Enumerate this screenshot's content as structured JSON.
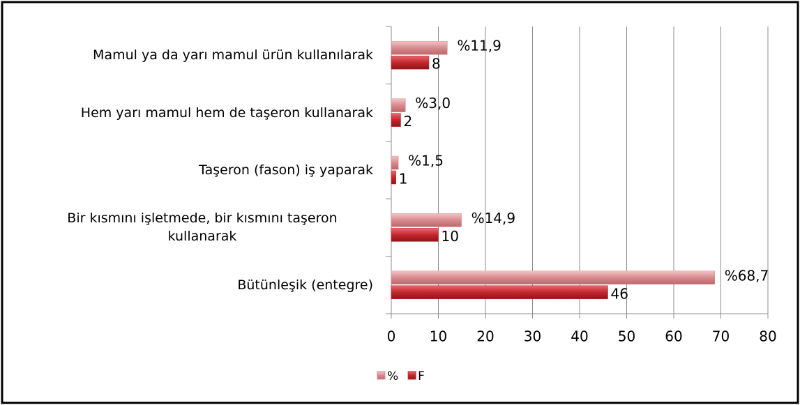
{
  "chart_data": {
    "type": "bar",
    "orientation": "horizontal",
    "categories": [
      "Mamul ya da yarı mamul ürün kullanılarak",
      "Hem yarı mamul hem de taşeron kullanarak",
      "Taşeron (fason)  iş yaparak",
      "Bir kısmını işletmede, bir kısmını taşeron kullanarak",
      "Bütünleşik  (entegre)"
    ],
    "series": [
      {
        "name": "%",
        "color": "#d98a8e",
        "values": [
          11.9,
          3.0,
          1.5,
          14.9,
          68.7
        ],
        "value_labels": [
          "%11,9",
          "%3,0",
          "%1,5",
          "%14,9",
          "%68,7"
        ]
      },
      {
        "name": "F",
        "color": "#c4272e",
        "values": [
          8,
          2,
          1,
          10,
          46
        ]
      }
    ],
    "xlim": [
      0,
      80
    ],
    "xticks": [
      0,
      10,
      20,
      30,
      40,
      50,
      60,
      70,
      80
    ],
    "grid": true,
    "legend": "bottom"
  }
}
